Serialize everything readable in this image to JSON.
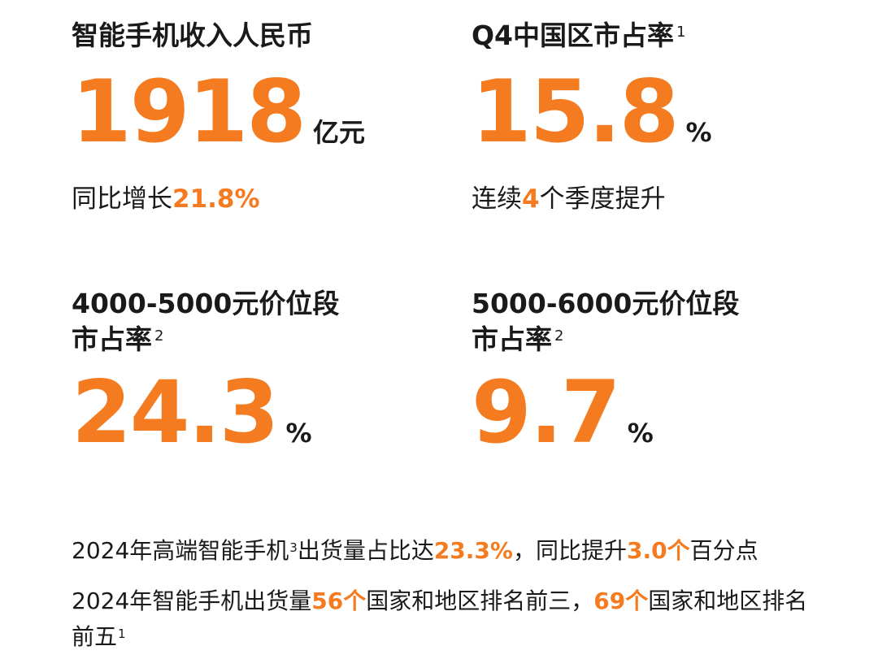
{
  "stats": [
    {
      "title": "智能手机收入人民币",
      "value": "1918",
      "unit": "亿元",
      "note": [
        "同比增长",
        "21.8%"
      ]
    },
    {
      "title": "Q4中国区市占率",
      "footnote": "1",
      "value": "15.8",
      "unit": "%",
      "note": [
        "连续",
        "4",
        "个季度提升"
      ]
    },
    {
      "title": [
        "4000-5000元价位段",
        "市占率"
      ],
      "footnote": "2",
      "value": "24.3",
      "unit": "%"
    },
    {
      "title": [
        "5000-6000元价位段",
        "市占率"
      ],
      "footnote": "2",
      "value": "9.7",
      "unit": "%"
    }
  ],
  "highlights": [
    [
      "2024年高端智能手机",
      "3",
      "出货量占比达",
      "23.3%",
      "，同比提升",
      "3.0个",
      "百分点"
    ],
    [
      "2024年智能手机出货量",
      "56个",
      "国家和地区排名前三，",
      "69个",
      "国家和地区排名前五",
      "1"
    ]
  ]
}
